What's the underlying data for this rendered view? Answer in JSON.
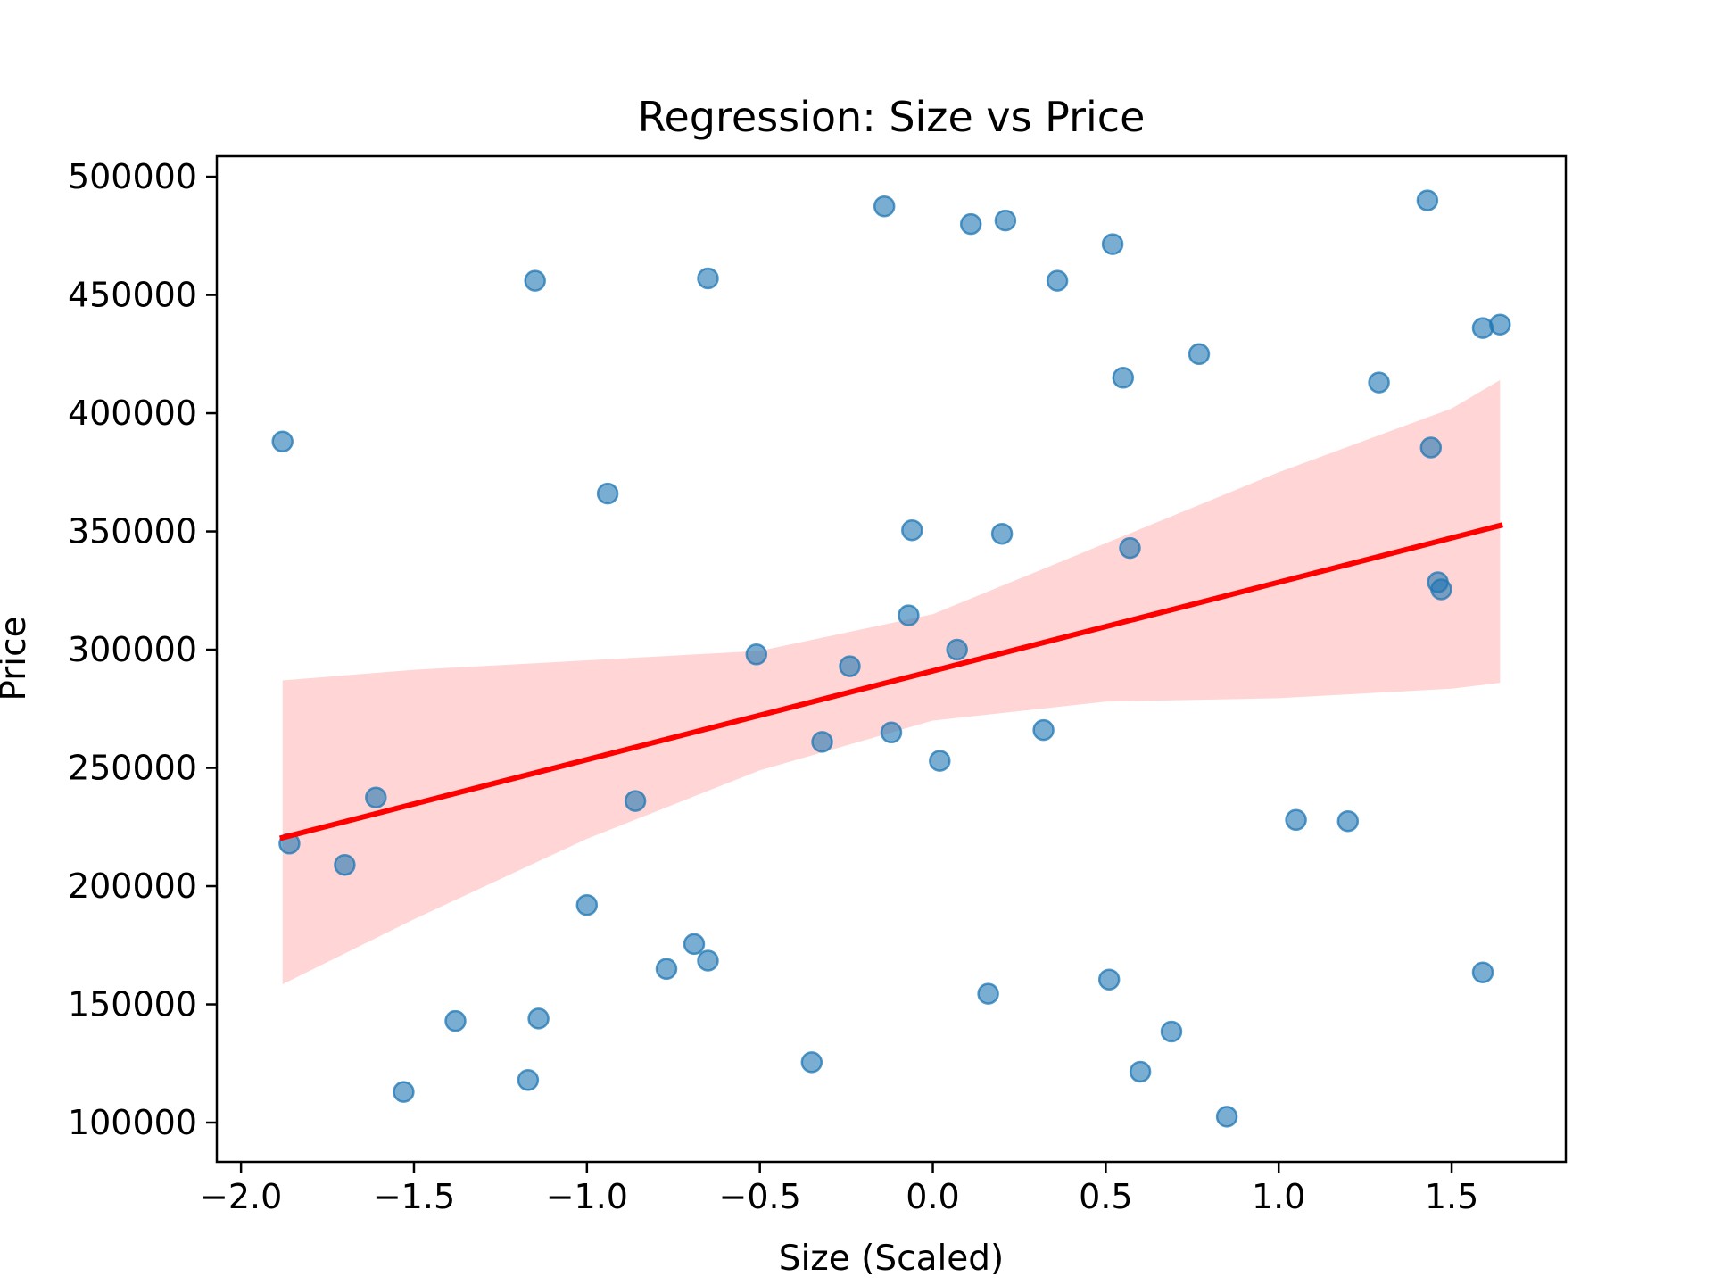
{
  "chart_data": {
    "type": "scatter",
    "title": "Regression: Size vs Price",
    "xlabel": "Size (Scaled)",
    "ylabel": "Price",
    "xlim": [
      -2.07,
      1.83
    ],
    "ylim": [
      83400,
      508700
    ],
    "x_ticks": [
      -2.0,
      -1.5,
      -1.0,
      -0.5,
      0.0,
      0.5,
      1.0,
      1.5
    ],
    "x_tick_labels": [
      "−2.0",
      "−1.5",
      "−1.0",
      "−0.5",
      "0.0",
      "0.5",
      "1.0",
      "1.5"
    ],
    "y_ticks": [
      100000,
      150000,
      200000,
      250000,
      300000,
      350000,
      400000,
      450000,
      500000
    ],
    "y_tick_labels": [
      "100000",
      "150000",
      "200000",
      "250000",
      "300000",
      "350000",
      "400000",
      "450000",
      "500000"
    ],
    "grid": false,
    "colors": {
      "points": "#1f77b4",
      "regression_line": "#ff0000",
      "confidence_band": "#ffb3b3"
    },
    "points": [
      {
        "x": -1.88,
        "y": 388000
      },
      {
        "x": -1.86,
        "y": 218000
      },
      {
        "x": -1.7,
        "y": 209000
      },
      {
        "x": -1.61,
        "y": 237500
      },
      {
        "x": -1.53,
        "y": 113000
      },
      {
        "x": -1.38,
        "y": 143000
      },
      {
        "x": -1.17,
        "y": 118000
      },
      {
        "x": -1.15,
        "y": 456000
      },
      {
        "x": -1.14,
        "y": 144000
      },
      {
        "x": -1.0,
        "y": 192000
      },
      {
        "x": -0.94,
        "y": 366000
      },
      {
        "x": -0.86,
        "y": 236000
      },
      {
        "x": -0.77,
        "y": 165000
      },
      {
        "x": -0.69,
        "y": 175500
      },
      {
        "x": -0.65,
        "y": 457000
      },
      {
        "x": -0.65,
        "y": 168500
      },
      {
        "x": -0.51,
        "y": 298000
      },
      {
        "x": -0.35,
        "y": 125500
      },
      {
        "x": -0.32,
        "y": 261000
      },
      {
        "x": -0.24,
        "y": 293000
      },
      {
        "x": -0.14,
        "y": 487500
      },
      {
        "x": -0.12,
        "y": 265000
      },
      {
        "x": -0.07,
        "y": 314500
      },
      {
        "x": -0.06,
        "y": 350500
      },
      {
        "x": 0.02,
        "y": 253000
      },
      {
        "x": 0.07,
        "y": 300000
      },
      {
        "x": 0.11,
        "y": 480000
      },
      {
        "x": 0.16,
        "y": 154500
      },
      {
        "x": 0.2,
        "y": 349000
      },
      {
        "x": 0.21,
        "y": 481500
      },
      {
        "x": 0.32,
        "y": 266000
      },
      {
        "x": 0.36,
        "y": 456000
      },
      {
        "x": 0.51,
        "y": 160500
      },
      {
        "x": 0.52,
        "y": 471500
      },
      {
        "x": 0.55,
        "y": 415000
      },
      {
        "x": 0.57,
        "y": 343000
      },
      {
        "x": 0.6,
        "y": 121500
      },
      {
        "x": 0.69,
        "y": 138500
      },
      {
        "x": 0.77,
        "y": 425000
      },
      {
        "x": 0.85,
        "y": 102500
      },
      {
        "x": 1.05,
        "y": 228000
      },
      {
        "x": 1.2,
        "y": 227500
      },
      {
        "x": 1.29,
        "y": 413000
      },
      {
        "x": 1.43,
        "y": 490000
      },
      {
        "x": 1.44,
        "y": 385500
      },
      {
        "x": 1.46,
        "y": 328500
      },
      {
        "x": 1.47,
        "y": 325500
      },
      {
        "x": 1.59,
        "y": 436000
      },
      {
        "x": 1.59,
        "y": 163500
      },
      {
        "x": 1.64,
        "y": 437500
      }
    ],
    "regression_line": {
      "x": [
        -1.88,
        1.64
      ],
      "y": [
        220500,
        352500
      ]
    },
    "confidence_band": {
      "x": [
        -1.88,
        -1.5,
        -1.0,
        -0.5,
        0.0,
        0.5,
        1.0,
        1.5,
        1.64
      ],
      "upper": [
        287000,
        291500,
        295500,
        299500,
        315000,
        345000,
        375000,
        402000,
        414000
      ],
      "lower": [
        158500,
        186000,
        220000,
        249000,
        270000,
        278000,
        279500,
        283500,
        286000
      ]
    }
  }
}
